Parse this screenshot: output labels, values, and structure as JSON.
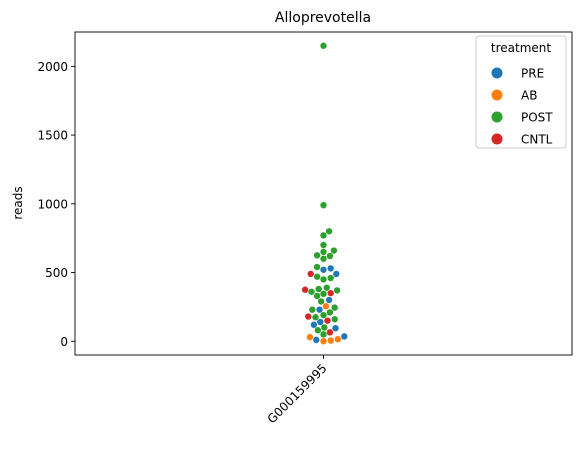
{
  "chart_data": {
    "type": "scatter",
    "subtype": "swarm",
    "title": "Alloprevotella",
    "xlabel": "",
    "ylabel": "reads",
    "categories": [
      "G000159995"
    ],
    "ylim": [
      -100,
      2250
    ],
    "yticks": [
      0,
      500,
      1000,
      1500,
      2000
    ],
    "grid": false,
    "legend": {
      "title": "treatment",
      "placement": "top-right",
      "entries": [
        {
          "label": "PRE",
          "color": "#1f77b4"
        },
        {
          "label": "AB",
          "color": "#ff7f0e"
        },
        {
          "label": "POST",
          "color": "#2ca02c"
        },
        {
          "label": "CNTL",
          "color": "#d62728"
        }
      ]
    },
    "series": [
      {
        "name": "PRE",
        "color": "#1f77b4",
        "values": [
          10,
          35,
          95,
          120,
          140,
          230,
          300,
          490,
          520,
          530
        ]
      },
      {
        "name": "AB",
        "color": "#ff7f0e",
        "values": [
          0,
          5,
          15,
          30,
          255
        ]
      },
      {
        "name": "POST",
        "color": "#2ca02c",
        "values": [
          50,
          80,
          100,
          160,
          175,
          190,
          210,
          230,
          245,
          290,
          330,
          345,
          360,
          370,
          380,
          390,
          450,
          460,
          470,
          540,
          600,
          620,
          625,
          650,
          660,
          700,
          770,
          800,
          990,
          2150
        ]
      },
      {
        "name": "CNTL",
        "color": "#d62728",
        "values": [
          65,
          150,
          180,
          350,
          375,
          490
        ]
      }
    ]
  }
}
